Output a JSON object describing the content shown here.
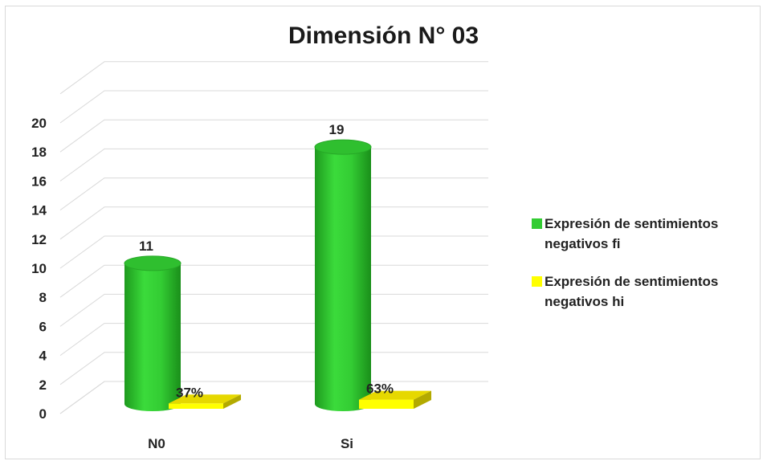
{
  "chart_data": {
    "type": "bar",
    "title": "Dimensión N° 03",
    "categories": [
      "N0",
      "Si"
    ],
    "series": [
      {
        "name": "Expresión de sentimientos negativos fi",
        "values": [
          11,
          19
        ],
        "labels": [
          "11",
          "19"
        ],
        "color": "#33cc33"
      },
      {
        "name": "Expresión de sentimientos negativos hi",
        "values": [
          0.37,
          0.63
        ],
        "labels": [
          "37%",
          "63%"
        ],
        "color": "#ffff00"
      }
    ],
    "yticks": [
      "0",
      "2",
      "4",
      "6",
      "8",
      "10",
      "12",
      "14",
      "16",
      "18",
      "20"
    ],
    "ylim": [
      0,
      22
    ],
    "grid": true,
    "legend_position": "right"
  }
}
